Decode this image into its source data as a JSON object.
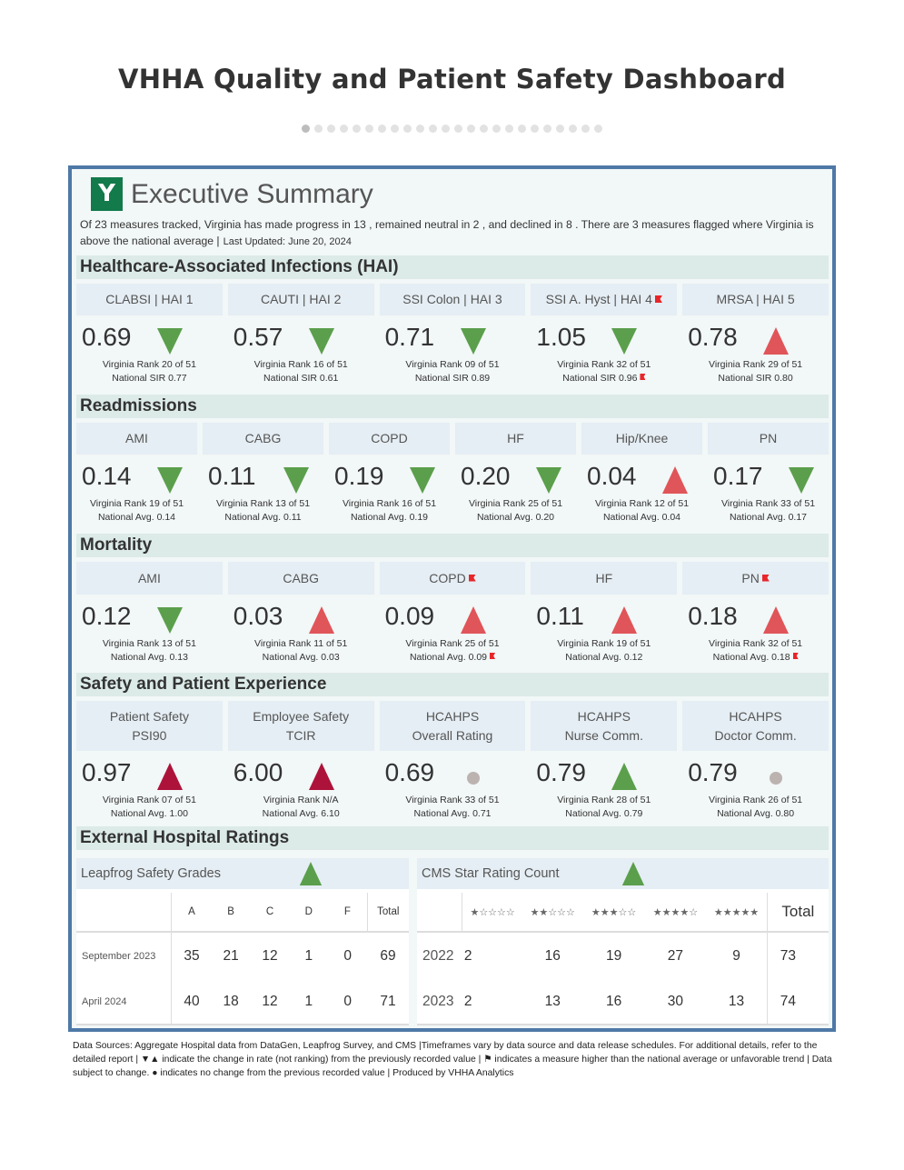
{
  "title": "VHHA Quality and Patient Safety Dashboard",
  "pagination": {
    "total": 24,
    "current": 1
  },
  "summary": {
    "heading": "Executive Summary",
    "text": "Of 23 measures tracked, Virginia has made progress in 13 , remained neutral in 2 , and declined in 8 . There are 3 measures flagged where Virginia is above the national average |",
    "last_updated": "Last Updated: June 20, 2024"
  },
  "colors": {
    "improve": "#5b9f4c",
    "worse": "#e05559",
    "worse_safety": "#ad133a",
    "neutral": "#bcb3b0",
    "flag": "#e8262a",
    "frame": "#4e79a7"
  },
  "sections": [
    {
      "title": "Healthcare-Associated Infections (HAI)",
      "cards": [
        {
          "label": "CLABSI | HAI 1",
          "value": "0.69",
          "indicator": "down-green",
          "rank": "Virginia Rank 20 of 51",
          "national": "National SIR 0.77"
        },
        {
          "label": "CAUTI | HAI 2",
          "value": "0.57",
          "indicator": "down-green",
          "rank": "Virginia Rank 16 of 51",
          "national": "National SIR 0.61"
        },
        {
          "label": "SSI Colon | HAI 3",
          "value": "0.71",
          "indicator": "down-green",
          "rank": "Virginia Rank 09 of 51",
          "national": "National SIR  0.89"
        },
        {
          "label": "SSI A. Hyst | HAI 4",
          "flag": true,
          "value": "1.05",
          "indicator": "down-green",
          "rank": "Virginia Rank 32 of 51",
          "national": "National SIR 0.96",
          "national_flag": true
        },
        {
          "label": "MRSA | HAI 5",
          "value": "0.78",
          "indicator": "up-red",
          "rank": "Virginia Rank 29 of 51",
          "national": "National SIR 0.80"
        }
      ]
    },
    {
      "title": "Readmissions",
      "cards": [
        {
          "label": "AMI",
          "value": "0.14",
          "indicator": "down-green",
          "rank": "Virginia Rank 19 of 51",
          "national": "National Avg. 0.14"
        },
        {
          "label": "CABG",
          "value": "0.11",
          "indicator": "down-green",
          "rank": "Virginia Rank 13 of 51",
          "national": "National Avg. 0.11"
        },
        {
          "label": "COPD",
          "value": "0.19",
          "indicator": "down-green",
          "rank": "Virginia Rank 16 of 51",
          "national": "National Avg. 0.19"
        },
        {
          "label": "HF",
          "value": "0.20",
          "indicator": "down-green",
          "rank": "Virginia Rank 25 of 51",
          "national": "National Avg. 0.20"
        },
        {
          "label": "Hip/Knee",
          "value": "0.04",
          "indicator": "up-red",
          "rank": "Virginia Rank 12 of 51",
          "national": "National Avg. 0.04"
        },
        {
          "label": "PN",
          "value": "0.17",
          "indicator": "down-green",
          "rank": "Virginia Rank 33 of 51",
          "national": "National Avg. 0.17"
        }
      ]
    },
    {
      "title": "Mortality",
      "cards": [
        {
          "label": "AMI",
          "value": "0.12",
          "indicator": "down-green",
          "rank": "Virginia Rank 13 of 51",
          "national": "National Avg. 0.13"
        },
        {
          "label": "CABG",
          "value": "0.03",
          "indicator": "up-red",
          "rank": "Virginia Rank 11 of 51",
          "national": "National Avg. 0.03"
        },
        {
          "label": "COPD",
          "flag": true,
          "value": "0.09",
          "indicator": "up-red",
          "rank": "Virginia Rank 25 of 51",
          "national": "National Avg. 0.09",
          "national_flag": true
        },
        {
          "label": "HF",
          "value": "0.11",
          "indicator": "up-red",
          "rank": "Virginia Rank 19 of 51",
          "national": "National Avg. 0.12"
        },
        {
          "label": "PN",
          "flag": true,
          "value": "0.18",
          "indicator": "up-red",
          "rank": "Virginia Rank 32 of 51",
          "national": "National Avg. 0.18",
          "national_flag": true
        }
      ]
    },
    {
      "title": "Safety and Patient Experience",
      "cards": [
        {
          "label": "Patient Safety",
          "label2": "PSI90",
          "value": "0.97",
          "indicator": "up-darkred",
          "rank": "Virginia Rank 07 of 51",
          "national": "National Avg. 1.00"
        },
        {
          "label": "Employee Safety",
          "label2": "TCIR",
          "value": "6.00",
          "indicator": "up-darkred",
          "rank": "Virginia Rank N/A",
          "national": "National Avg. 6.10"
        },
        {
          "label": "HCAHPS",
          "label2": "Overall Rating",
          "value": "0.69",
          "indicator": "dot-gray",
          "rank": "Virginia Rank 33 of 51",
          "national": "National Avg. 0.71"
        },
        {
          "label": "HCAHPS",
          "label2": "Nurse Comm.",
          "value": "0.79",
          "indicator": "up-green",
          "rank": "Virginia Rank 28 of 51",
          "national": "National Avg. 0.79"
        },
        {
          "label": "HCAHPS",
          "label2": "Doctor Comm.",
          "value": "0.79",
          "indicator": "dot-gray",
          "rank": "Virginia Rank 26 of 51",
          "national": "National Avg. 0.80"
        }
      ]
    }
  ],
  "external": {
    "title": "External Hospital Ratings",
    "leapfrog": {
      "title": "Leapfrog Safety Grades",
      "indicator": "up-green",
      "columns": [
        "A",
        "B",
        "C",
        "D",
        "F",
        "Total"
      ],
      "rows": [
        {
          "label": "September 2023",
          "values": [
            "35",
            "21",
            "12",
            "1",
            "0",
            "69"
          ]
        },
        {
          "label": "April 2024",
          "values": [
            "40",
            "18",
            "12",
            "1",
            "0",
            "71"
          ]
        }
      ]
    },
    "cms": {
      "title": "CMS Star Rating Count",
      "indicator": "up-green",
      "columns": [
        "★☆☆☆☆",
        "★★☆☆☆",
        "★★★☆☆",
        "★★★★☆",
        "★★★★★",
        "Total"
      ],
      "rows": [
        {
          "label": "2022",
          "values": [
            "2",
            "16",
            "19",
            "27",
            "9",
            "73"
          ]
        },
        {
          "label": "2023",
          "values": [
            "2",
            "13",
            "16",
            "30",
            "13",
            "74"
          ]
        }
      ]
    }
  },
  "footer": "Data Sources: Aggregate Hospital data from DataGen, Leapfrog Survey, and CMS |Timeframes vary by data source and data release schedules. For additional details, refer to the detailed report | ▼▲ indicate the change in rate (not ranking) from the previously recorded value | ⚑ indicates a measure higher than the national average or unfavorable trend | Data subject to change. ● indicates no change from the previous recorded value | Produced by VHHA Analytics"
}
